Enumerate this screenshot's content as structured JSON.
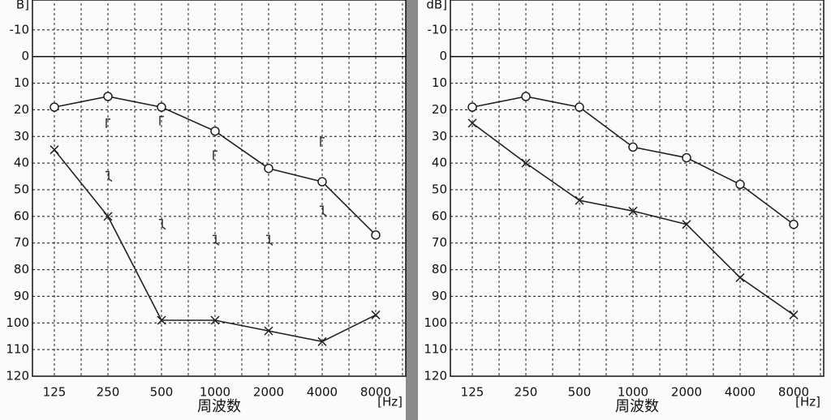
{
  "chart_data": [
    {
      "type": "line",
      "ylabel": "B]",
      "xlabel": "周波数",
      "xunit": "[Hz]",
      "categories": [
        "125",
        "250",
        "500",
        "1000",
        "2000",
        "4000",
        "8000"
      ],
      "ylim": [
        -20,
        120
      ],
      "y_inverted": true,
      "yticks": [
        -10,
        0,
        10,
        20,
        30,
        40,
        50,
        60,
        70,
        80,
        90,
        100,
        110,
        120
      ],
      "grid": true,
      "series": [
        {
          "color": "#222222",
          "marker": "circle",
          "line": true,
          "values": [
            19,
            15,
            19,
            28,
            42,
            47,
            67
          ]
        },
        {
          "color": "#222222",
          "marker": "cross",
          "line": true,
          "values": [
            35,
            60,
            99,
            99,
            103,
            107,
            97
          ]
        },
        {
          "color": "#333333",
          "marker": "bracket",
          "line": false,
          "values": [
            null,
            25,
            24,
            37,
            null,
            32,
            null
          ]
        },
        {
          "color": "#333333",
          "marker": "hook",
          "line": false,
          "values": [
            null,
            45,
            63,
            69,
            69,
            58,
            null
          ]
        }
      ]
    },
    {
      "type": "line",
      "ylabel": "dB]",
      "xlabel": "周波数",
      "xunit": "[Hz]",
      "categories": [
        "125",
        "250",
        "500",
        "1000",
        "2000",
        "4000",
        "8000"
      ],
      "ylim": [
        -20,
        120
      ],
      "y_inverted": true,
      "yticks": [
        -10,
        0,
        10,
        20,
        30,
        40,
        50,
        60,
        70,
        80,
        90,
        100,
        110,
        120
      ],
      "grid": true,
      "series": [
        {
          "color": "#222222",
          "marker": "circle",
          "line": true,
          "values": [
            19,
            15,
            19,
            34,
            38,
            48,
            63
          ]
        },
        {
          "color": "#222222",
          "marker": "cross",
          "line": true,
          "values": [
            25,
            40,
            54,
            58,
            63,
            83,
            97
          ]
        }
      ]
    }
  ]
}
